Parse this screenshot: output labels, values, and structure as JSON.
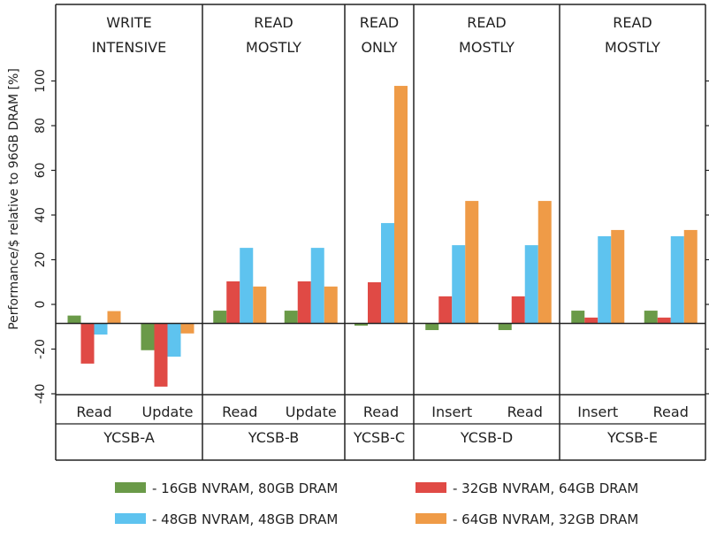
{
  "chart_data": {
    "type": "bar",
    "ylabel": "Performance/$ relative to 96GB DRAM [%]",
    "ylim": [
      -40,
      100
    ],
    "yticks": [
      -40,
      -20,
      0,
      20,
      40,
      60,
      80,
      100
    ],
    "baseline": -8.5,
    "grid": false,
    "legend_position": "bottom",
    "series": [
      {
        "name": "- 16GB NVRAM, 80GB DRAM",
        "color": "#6a9a48"
      },
      {
        "name": "- 32GB NVRAM, 64GB DRAM",
        "color": "#e04a45"
      },
      {
        "name": "- 48GB NVRAM, 48GB DRAM",
        "color": "#5ec3ef"
      },
      {
        "name": "- 64GB NVRAM, 32GB DRAM",
        "color": "#ef9b47"
      }
    ],
    "panels": [
      {
        "header": [
          "WRITE",
          "INTENSIVE"
        ],
        "workload": "YCSB-A",
        "groups": [
          {
            "label": "Read",
            "values": [
              -5,
              -26.5,
              -13.5,
              -3
            ]
          },
          {
            "label": "Update",
            "values": [
              -20.5,
              -36.8,
              -23.4,
              -13
            ]
          }
        ]
      },
      {
        "header": [
          "READ",
          "MOSTLY"
        ],
        "workload": "YCSB-B",
        "groups": [
          {
            "label": "Read",
            "values": [
              -2.8,
              10.3,
              25.3,
              8
            ]
          },
          {
            "label": "Update",
            "values": [
              -2.8,
              10.3,
              25.3,
              8
            ]
          }
        ]
      },
      {
        "header": [
          "READ",
          "ONLY"
        ],
        "workload": "YCSB-C",
        "groups": [
          {
            "label": "Read",
            "values": [
              -9.5,
              9.9,
              36.4,
              97.8
            ]
          }
        ]
      },
      {
        "header": [
          "READ",
          "MOSTLY"
        ],
        "workload": "YCSB-D",
        "groups": [
          {
            "label": "Insert",
            "values": [
              -11.5,
              3.6,
              26.5,
              46.3
            ]
          },
          {
            "label": "Read",
            "values": [
              -11.5,
              3.6,
              26.5,
              46.3
            ]
          }
        ]
      },
      {
        "header": [
          "READ",
          "MOSTLY"
        ],
        "workload": "YCSB-E",
        "groups": [
          {
            "label": "Insert",
            "values": [
              -2.8,
              -5.9,
              30.5,
              33.3
            ]
          },
          {
            "label": "Read",
            "values": [
              -2.8,
              -5.9,
              30.5,
              33.3
            ]
          }
        ]
      }
    ]
  }
}
